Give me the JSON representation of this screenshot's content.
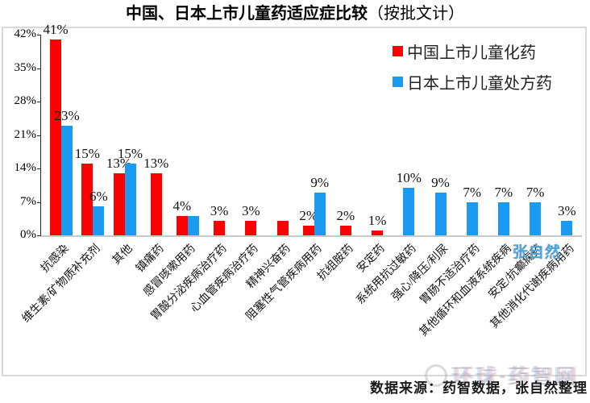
{
  "title": {
    "main": "中国、日本上市儿童药适应症比较",
    "sub": "（按批文计）"
  },
  "legend": [
    {
      "label": "中国上市儿童化药",
      "color": "#fd0000"
    },
    {
      "label": "日本上市儿童处方药",
      "color": "#1a9af0"
    }
  ],
  "source": "数据来源：药智数据，张自然整理",
  "watermark": {
    "author": "张自然",
    "logo": "环球·药智网"
  },
  "chart_data": {
    "type": "bar",
    "title": "中国、日本上市儿童药适应症比较（按批文计）",
    "categories": [
      "抗感染",
      "维生素/矿物质补充剂",
      "其他",
      "镇痛药",
      "感冒咳嗽用药",
      "胃酸分泌疾病治疗药",
      "心血管疾病治疗药",
      "精神兴奋药",
      "阻塞性气管疾病用药",
      "抗组胺药",
      "安定药",
      "系统用抗过敏药",
      "强心/降压/利尿",
      "胃肠不适治疗药",
      "其他循环和血液系统疾病",
      "安定/抗癫痫药",
      "其他消化代谢疾病用药"
    ],
    "series": [
      {
        "name": "中国上市儿童化药",
        "color": "#fd0000",
        "values": [
          41,
          15,
          13,
          13,
          4,
          3,
          3,
          3,
          2,
          2,
          1,
          null,
          null,
          null,
          null,
          null,
          null
        ],
        "labels": [
          "41%",
          "15%",
          "13%",
          "13%",
          "4%",
          "3%",
          "3%",
          "",
          "2%",
          "2%",
          "1%",
          "",
          "",
          "",
          "",
          "",
          ""
        ]
      },
      {
        "name": "日本上市儿童处方药",
        "color": "#1a9af0",
        "values": [
          23,
          6,
          15,
          null,
          4,
          null,
          null,
          null,
          9,
          null,
          null,
          10,
          9,
          7,
          7,
          7,
          3
        ],
        "labels": [
          "23%",
          "6%",
          "15%",
          "",
          "",
          "",
          "",
          "",
          "9%",
          "",
          "",
          "10%",
          "9%",
          "7%",
          "7%",
          "7%",
          "3%"
        ]
      }
    ],
    "xlabel": "",
    "ylabel": "",
    "ylim": [
      0,
      42
    ],
    "yticks": [
      "0%",
      "7%",
      "14%",
      "21%",
      "28%",
      "35%",
      "42%"
    ],
    "grid": false,
    "legend_position": "top-right",
    "data_labels": true
  }
}
